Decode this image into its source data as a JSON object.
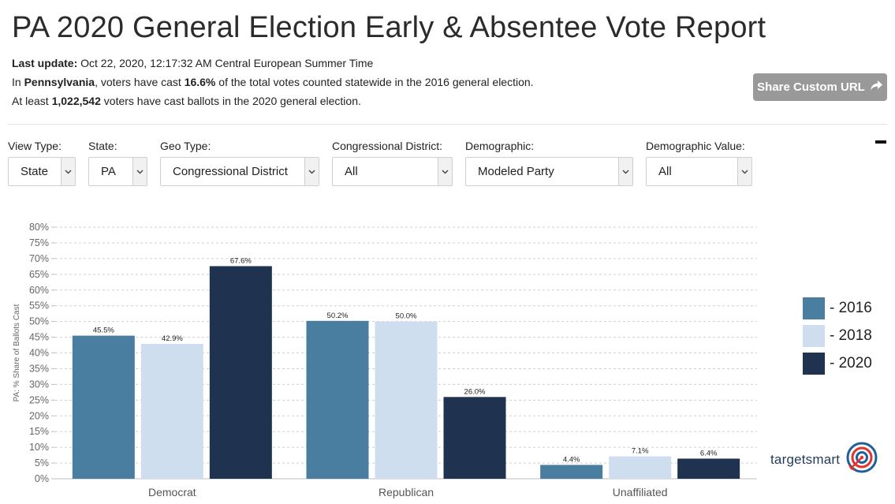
{
  "header": {
    "title": "PA 2020 General Election Early & Absentee Vote Report",
    "last_update_label": "Last update:",
    "last_update_value": " Oct 22, 2020, 12:17:32 AM Central European Summer Time",
    "line2_a": "In ",
    "line2_state": "Pennsylvania",
    "line2_b": ", voters have cast ",
    "line2_pct": "16.6%",
    "line2_c": " of the total votes counted statewide in the 2016 general election.",
    "line3_a": "At least ",
    "line3_count": "1,022,542",
    "line3_b": " voters have cast ballots in the 2020 general election."
  },
  "share_button": {
    "label": "Share Custom URL",
    "icon": "share-arrow-icon"
  },
  "filters": [
    {
      "label": "View Type:",
      "value": "State"
    },
    {
      "label": "State:",
      "value": "PA"
    },
    {
      "label": "Geo Type:",
      "value": "Congressional District"
    },
    {
      "label": "Congressional District:",
      "value": "All"
    },
    {
      "label": "Demographic:",
      "value": "Modeled Party"
    },
    {
      "label": "Demographic Value:",
      "value": "All"
    }
  ],
  "brand": {
    "name": "targetsmart",
    "icon": "target-icon"
  },
  "colors": {
    "y2016": "#4a7ea0",
    "y2018": "#cfdeef",
    "y2020": "#1f3350",
    "button": "#999999"
  },
  "chart_data": {
    "type": "bar",
    "ylabel": "PA: % Share of Ballots Cast",
    "ylim": [
      0,
      80
    ],
    "yticks": [
      "0%",
      "5%",
      "10%",
      "15%",
      "20%",
      "25%",
      "30%",
      "35%",
      "40%",
      "45%",
      "50%",
      "55%",
      "60%",
      "65%",
      "70%",
      "75%",
      "80%"
    ],
    "categories": [
      "Democrat",
      "Republican",
      "Unaffiliated"
    ],
    "grid": true,
    "legend_position": "right",
    "series": [
      {
        "name": "- 2016",
        "values": [
          45.5,
          50.2,
          4.4
        ],
        "labels": [
          "45.5%",
          "50.2%",
          "4.4%"
        ]
      },
      {
        "name": "- 2018",
        "values": [
          42.9,
          50.0,
          7.1
        ],
        "labels": [
          "42.9%",
          "50.0%",
          "7.1%"
        ]
      },
      {
        "name": "- 2020",
        "values": [
          67.6,
          26.0,
          6.4
        ],
        "labels": [
          "67.6%",
          "26.0%",
          "6.4%"
        ]
      }
    ]
  }
}
